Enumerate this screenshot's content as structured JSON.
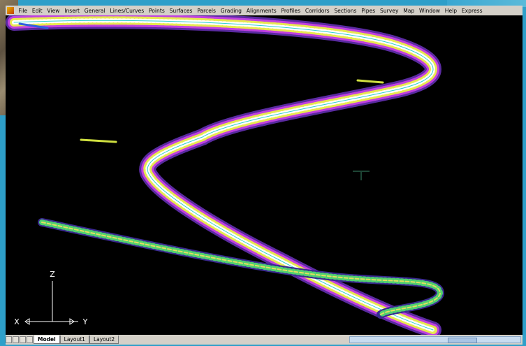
{
  "menu": [
    "File",
    "Edit",
    "View",
    "Insert",
    "General",
    "Lines/Curves",
    "Points",
    "Surfaces",
    "Parcels",
    "Grading",
    "Alignments",
    "Profiles",
    "Corridors",
    "Sections",
    "Pipes",
    "Survey",
    "Map",
    "Window",
    "Help",
    "Express"
  ],
  "tabs": [
    "Model",
    "Layout1",
    "Layout2"
  ],
  "ucs": {
    "z": "Z",
    "x": "X",
    "y": "Y"
  }
}
